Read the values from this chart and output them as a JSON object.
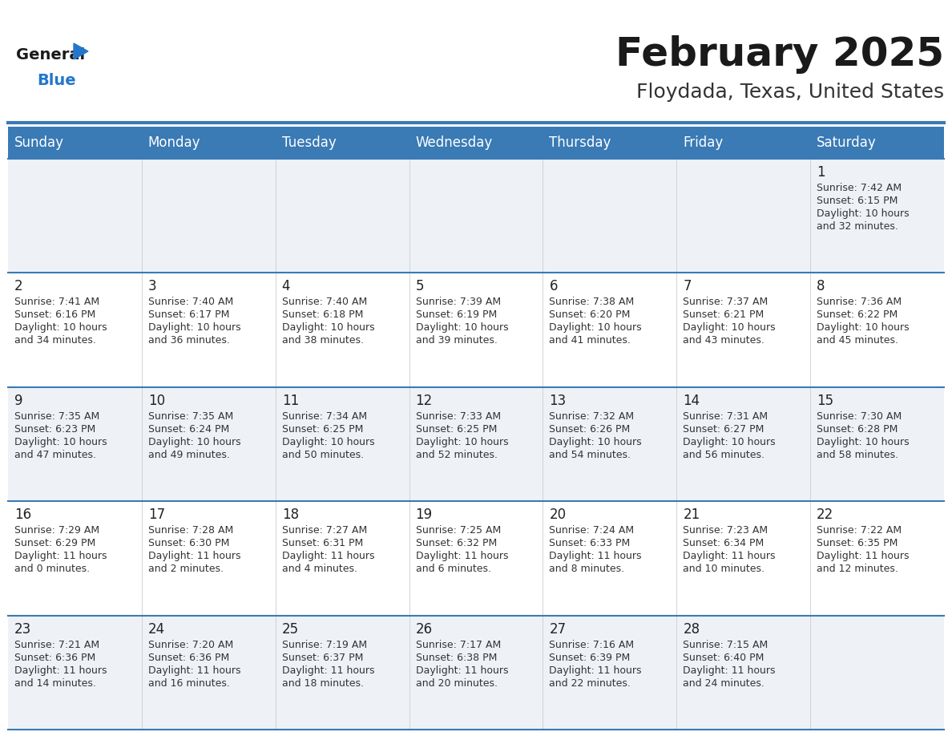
{
  "title": "February 2025",
  "subtitle": "Floydada, Texas, United States",
  "header_color": "#3a7ab5",
  "header_text_color": "#ffffff",
  "row_bg_light": "#eef2f7",
  "row_bg_white": "#ffffff",
  "separator_color": "#3a7ab5",
  "day_headers": [
    "Sunday",
    "Monday",
    "Tuesday",
    "Wednesday",
    "Thursday",
    "Friday",
    "Saturday"
  ],
  "title_color": "#1a1a1a",
  "subtitle_color": "#333333",
  "day_num_color": "#222222",
  "info_color": "#333333",
  "logo_general_color": "#1a1a1a",
  "logo_blue_color": "#2277cc",
  "weeks": [
    [
      {
        "day": null,
        "sunrise": null,
        "sunset": null,
        "daylight": null
      },
      {
        "day": null,
        "sunrise": null,
        "sunset": null,
        "daylight": null
      },
      {
        "day": null,
        "sunrise": null,
        "sunset": null,
        "daylight": null
      },
      {
        "day": null,
        "sunrise": null,
        "sunset": null,
        "daylight": null
      },
      {
        "day": null,
        "sunrise": null,
        "sunset": null,
        "daylight": null
      },
      {
        "day": null,
        "sunrise": null,
        "sunset": null,
        "daylight": null
      },
      {
        "day": 1,
        "sunrise": "7:42 AM",
        "sunset": "6:15 PM",
        "daylight": "10 hours and 32 minutes."
      }
    ],
    [
      {
        "day": 2,
        "sunrise": "7:41 AM",
        "sunset": "6:16 PM",
        "daylight": "10 hours and 34 minutes."
      },
      {
        "day": 3,
        "sunrise": "7:40 AM",
        "sunset": "6:17 PM",
        "daylight": "10 hours and 36 minutes."
      },
      {
        "day": 4,
        "sunrise": "7:40 AM",
        "sunset": "6:18 PM",
        "daylight": "10 hours and 38 minutes."
      },
      {
        "day": 5,
        "sunrise": "7:39 AM",
        "sunset": "6:19 PM",
        "daylight": "10 hours and 39 minutes."
      },
      {
        "day": 6,
        "sunrise": "7:38 AM",
        "sunset": "6:20 PM",
        "daylight": "10 hours and 41 minutes."
      },
      {
        "day": 7,
        "sunrise": "7:37 AM",
        "sunset": "6:21 PM",
        "daylight": "10 hours and 43 minutes."
      },
      {
        "day": 8,
        "sunrise": "7:36 AM",
        "sunset": "6:22 PM",
        "daylight": "10 hours and 45 minutes."
      }
    ],
    [
      {
        "day": 9,
        "sunrise": "7:35 AM",
        "sunset": "6:23 PM",
        "daylight": "10 hours and 47 minutes."
      },
      {
        "day": 10,
        "sunrise": "7:35 AM",
        "sunset": "6:24 PM",
        "daylight": "10 hours and 49 minutes."
      },
      {
        "day": 11,
        "sunrise": "7:34 AM",
        "sunset": "6:25 PM",
        "daylight": "10 hours and 50 minutes."
      },
      {
        "day": 12,
        "sunrise": "7:33 AM",
        "sunset": "6:25 PM",
        "daylight": "10 hours and 52 minutes."
      },
      {
        "day": 13,
        "sunrise": "7:32 AM",
        "sunset": "6:26 PM",
        "daylight": "10 hours and 54 minutes."
      },
      {
        "day": 14,
        "sunrise": "7:31 AM",
        "sunset": "6:27 PM",
        "daylight": "10 hours and 56 minutes."
      },
      {
        "day": 15,
        "sunrise": "7:30 AM",
        "sunset": "6:28 PM",
        "daylight": "10 hours and 58 minutes."
      }
    ],
    [
      {
        "day": 16,
        "sunrise": "7:29 AM",
        "sunset": "6:29 PM",
        "daylight": "11 hours and 0 minutes."
      },
      {
        "day": 17,
        "sunrise": "7:28 AM",
        "sunset": "6:30 PM",
        "daylight": "11 hours and 2 minutes."
      },
      {
        "day": 18,
        "sunrise": "7:27 AM",
        "sunset": "6:31 PM",
        "daylight": "11 hours and 4 minutes."
      },
      {
        "day": 19,
        "sunrise": "7:25 AM",
        "sunset": "6:32 PM",
        "daylight": "11 hours and 6 minutes."
      },
      {
        "day": 20,
        "sunrise": "7:24 AM",
        "sunset": "6:33 PM",
        "daylight": "11 hours and 8 minutes."
      },
      {
        "day": 21,
        "sunrise": "7:23 AM",
        "sunset": "6:34 PM",
        "daylight": "11 hours and 10 minutes."
      },
      {
        "day": 22,
        "sunrise": "7:22 AM",
        "sunset": "6:35 PM",
        "daylight": "11 hours and 12 minutes."
      }
    ],
    [
      {
        "day": 23,
        "sunrise": "7:21 AM",
        "sunset": "6:36 PM",
        "daylight": "11 hours and 14 minutes."
      },
      {
        "day": 24,
        "sunrise": "7:20 AM",
        "sunset": "6:36 PM",
        "daylight": "11 hours and 16 minutes."
      },
      {
        "day": 25,
        "sunrise": "7:19 AM",
        "sunset": "6:37 PM",
        "daylight": "11 hours and 18 minutes."
      },
      {
        "day": 26,
        "sunrise": "7:17 AM",
        "sunset": "6:38 PM",
        "daylight": "11 hours and 20 minutes."
      },
      {
        "day": 27,
        "sunrise": "7:16 AM",
        "sunset": "6:39 PM",
        "daylight": "11 hours and 22 minutes."
      },
      {
        "day": 28,
        "sunrise": "7:15 AM",
        "sunset": "6:40 PM",
        "daylight": "11 hours and 24 minutes."
      },
      {
        "day": null,
        "sunrise": null,
        "sunset": null,
        "daylight": null
      }
    ]
  ]
}
